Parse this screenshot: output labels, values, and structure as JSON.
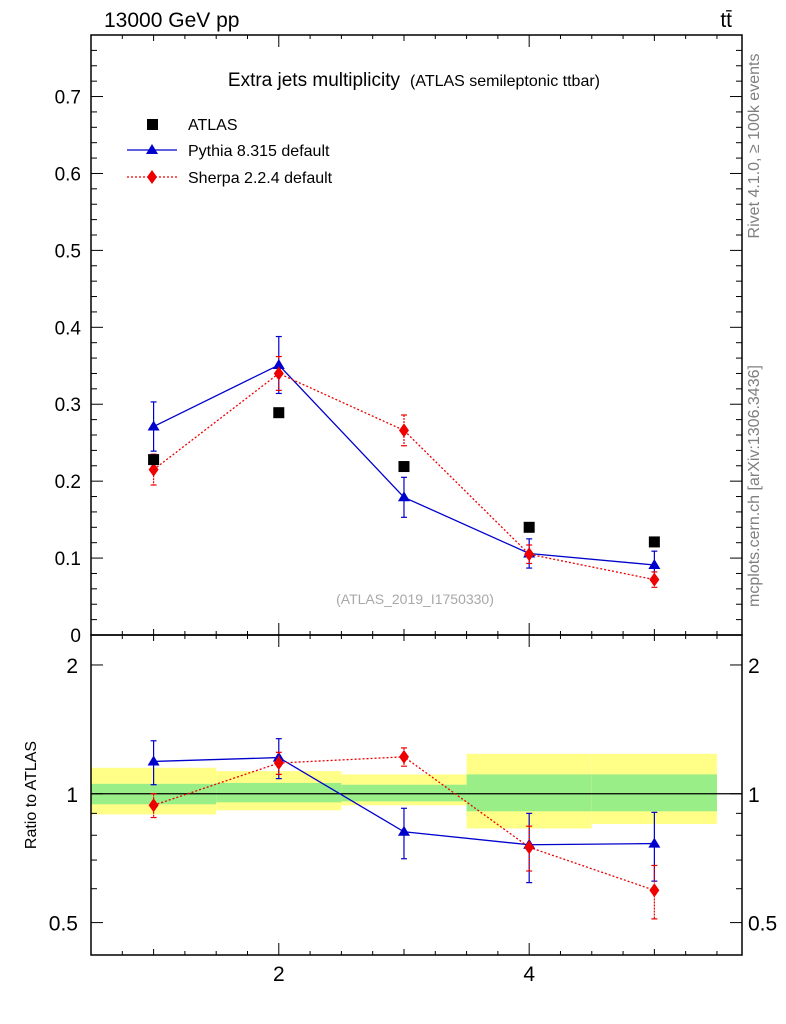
{
  "header": {
    "left": "13000 GeV pp",
    "right": "tt̄"
  },
  "side_labels": {
    "rivet": "Rivet 4.1.0, ≥ 100k events",
    "mcplots": "mcplots.cern.ch [arXiv:1306.3436]"
  },
  "chart_data": {
    "type": "scatter",
    "title": "Extra jets multiplicity",
    "subtitle": "(ATLAS semileptonic ttbar)",
    "watermark": "(ATLAS_2019_I1750330)",
    "x": [
      1,
      2,
      3,
      4,
      5
    ],
    "x_bin_edges": [
      0.5,
      1.5,
      2.5,
      3.5,
      4.5,
      5.5
    ],
    "xlim": [
      0.5,
      5.7
    ],
    "x_ticks": [
      2,
      4
    ],
    "main": {
      "ylim": [
        0,
        0.78
      ],
      "y_ticks": [
        0,
        0.1,
        0.2,
        0.3,
        0.4,
        0.5,
        0.6,
        0.7
      ],
      "y_tick_labels": [
        "0",
        "0.1",
        "0.2",
        "0.3",
        "0.4",
        "0.5",
        "0.6",
        "0.7"
      ],
      "series": [
        {
          "name": "ATLAS",
          "marker": "square",
          "color": "#000000",
          "values": [
            0.228,
            0.289,
            0.219,
            0.14,
            0.121
          ]
        },
        {
          "name": "Pythia 8.315 default",
          "marker": "triangle",
          "color": "#0000cc",
          "line": "solid",
          "values": [
            0.271,
            0.351,
            0.179,
            0.106,
            0.091
          ],
          "err": [
            0.032,
            0.037,
            0.026,
            0.019,
            0.018
          ]
        },
        {
          "name": "Sherpa 2.2.4 default",
          "marker": "diamond",
          "color": "#ee0000",
          "line": "dotted",
          "values": [
            0.215,
            0.34,
            0.266,
            0.105,
            0.072
          ],
          "err": [
            0.02,
            0.022,
            0.02,
            0.012,
            0.01
          ]
        }
      ]
    },
    "ratio": {
      "ylabel": "Ratio to ATLAS",
      "ylim": [
        0.42,
        2.35
      ],
      "log": true,
      "y_ticks": [
        0.5,
        1,
        2
      ],
      "y_tick_labels": [
        "0.5",
        "1",
        "2"
      ],
      "band_stat": [
        [
          0.945,
          1.055
        ],
        [
          0.955,
          1.06
        ],
        [
          0.96,
          1.05
        ],
        [
          0.91,
          1.11
        ],
        [
          0.91,
          1.11
        ]
      ],
      "band_total": [
        [
          0.895,
          1.15
        ],
        [
          0.915,
          1.13
        ],
        [
          0.94,
          1.11
        ],
        [
          0.83,
          1.24
        ],
        [
          0.85,
          1.24
        ]
      ],
      "series": [
        {
          "name": "Pythia 8.315 default",
          "color": "#0000cc",
          "values": [
            1.19,
            1.215,
            0.815,
            0.76,
            0.765
          ],
          "err": [
            0.14,
            0.13,
            0.11,
            0.14,
            0.14
          ]
        },
        {
          "name": "Sherpa 2.2.4 default",
          "color": "#ee0000",
          "values": [
            0.94,
            1.18,
            1.22,
            0.75,
            0.595
          ],
          "err": [
            0.06,
            0.07,
            0.06,
            0.09,
            0.085
          ]
        }
      ]
    }
  }
}
